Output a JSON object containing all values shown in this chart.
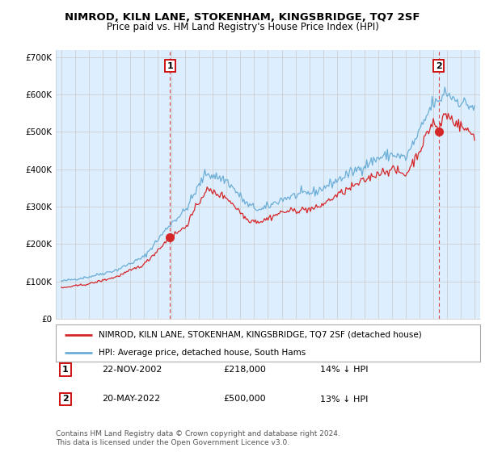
{
  "title": "NIMROD, KILN LANE, STOKENHAM, KINGSBRIDGE, TQ7 2SF",
  "subtitle": "Price paid vs. HM Land Registry's House Price Index (HPI)",
  "legend_line1": "NIMROD, KILN LANE, STOKENHAM, KINGSBRIDGE, TQ7 2SF (detached house)",
  "legend_line2": "HPI: Average price, detached house, South Hams",
  "transaction1_date": "22-NOV-2002",
  "transaction1_price": "£218,000",
  "transaction1_hpi": "14% ↓ HPI",
  "transaction2_date": "20-MAY-2022",
  "transaction2_price": "£500,000",
  "transaction2_hpi": "13% ↓ HPI",
  "footnote": "Contains HM Land Registry data © Crown copyright and database right 2024.\nThis data is licensed under the Open Government Licence v3.0.",
  "hpi_color": "#6baed6",
  "price_color": "#d62728",
  "marker_color": "#d62728",
  "vline_color": "#d62728",
  "grid_color": "#c8c8c8",
  "chart_bg_color": "#ddeeff",
  "bg_color": "#ffffff",
  "ylim": [
    0,
    720000
  ],
  "yticks": [
    0,
    100000,
    200000,
    300000,
    400000,
    500000,
    600000,
    700000
  ],
  "ytick_labels": [
    "£0",
    "£100K",
    "£200K",
    "£300K",
    "£400K",
    "£500K",
    "£600K",
    "£700K"
  ],
  "transaction1_x": 2002.9,
  "transaction1_y": 218000,
  "transaction2_x": 2022.38,
  "transaction2_y": 500000,
  "vline1_x": 2002.9,
  "vline2_x": 2022.38,
  "xmin": 1994.6,
  "xmax": 2025.4
}
